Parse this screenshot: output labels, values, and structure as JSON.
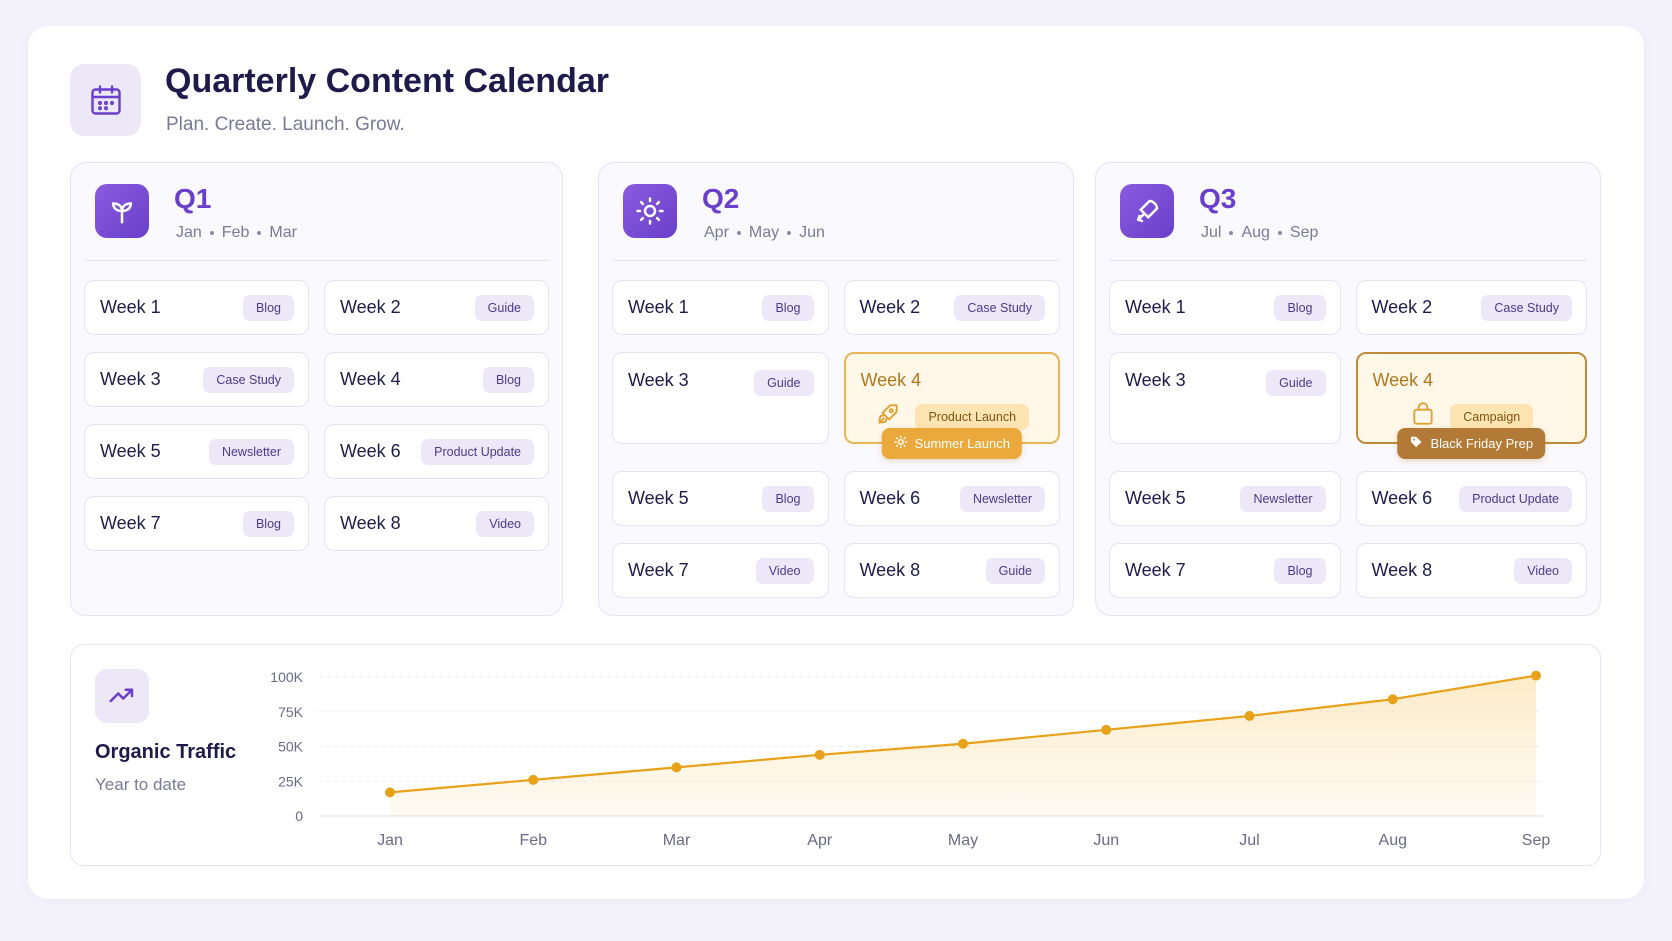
{
  "header": {
    "title": "Quarterly Content Calendar",
    "subtitle": "Plan. Create. Launch. Grow."
  },
  "quarters": [
    {
      "name": "Q1",
      "months": [
        "Jan",
        "Feb",
        "Mar"
      ],
      "weeks": [
        {
          "label": "Week 1",
          "tag": "Blog"
        },
        {
          "label": "Week 2",
          "tag": "Guide"
        },
        {
          "label": "Week 3",
          "tag": "Case Study"
        },
        {
          "label": "Week 4",
          "tag": "Blog"
        },
        {
          "label": "Week 5",
          "tag": "Newsletter"
        },
        {
          "label": "Week 6",
          "tag": "Product Update"
        },
        {
          "label": "Week 7",
          "tag": "Blog"
        },
        {
          "label": "Week 8",
          "tag": "Video"
        }
      ]
    },
    {
      "name": "Q2",
      "months": [
        "Apr",
        "May",
        "Jun"
      ],
      "weeks": [
        {
          "label": "Week 1",
          "tag": "Blog"
        },
        {
          "label": "Week 2",
          "tag": "Case Study"
        },
        {
          "label": "Week 3",
          "tag": "Guide"
        },
        {
          "label": "Week 4",
          "tag": "Product Launch",
          "badge": "Summer Launch"
        },
        {
          "label": "Week 5",
          "tag": "Blog"
        },
        {
          "label": "Week 6",
          "tag": "Newsletter"
        },
        {
          "label": "Week 7",
          "tag": "Video"
        },
        {
          "label": "Week 8",
          "tag": "Guide"
        }
      ]
    },
    {
      "name": "Q3",
      "months": [
        "Jul",
        "Aug",
        "Sep"
      ],
      "weeks": [
        {
          "label": "Week 1",
          "tag": "Blog"
        },
        {
          "label": "Week 2",
          "tag": "Case Study"
        },
        {
          "label": "Week 3",
          "tag": "Guide"
        },
        {
          "label": "Week 4",
          "tag": "Campaign",
          "badge": "Black Friday Prep"
        },
        {
          "label": "Week 5",
          "tag": "Newsletter"
        },
        {
          "label": "Week 6",
          "tag": "Product Update"
        },
        {
          "label": "Week 7",
          "tag": "Blog"
        },
        {
          "label": "Week 8",
          "tag": "Video"
        }
      ]
    }
  ],
  "chart_data": {
    "type": "line",
    "title": "Organic Traffic",
    "subtitle": "Year to date",
    "categories": [
      "Jan",
      "Feb",
      "Mar",
      "Apr",
      "May",
      "Jun",
      "Jul",
      "Aug",
      "Sep"
    ],
    "values": [
      17000,
      26000,
      35000,
      44000,
      52000,
      62000,
      72000,
      84000,
      101000
    ],
    "color": "#e8a21a",
    "ylim": [
      0,
      100000
    ],
    "yticks": [
      0,
      {
        "value": 25000,
        "label": "25K"
      },
      {
        "value": 50000,
        "label": "50K"
      },
      {
        "value": 75000,
        "label": "75K"
      },
      {
        "value": 100000,
        "label": "100K"
      }
    ],
    "grid": true
  }
}
